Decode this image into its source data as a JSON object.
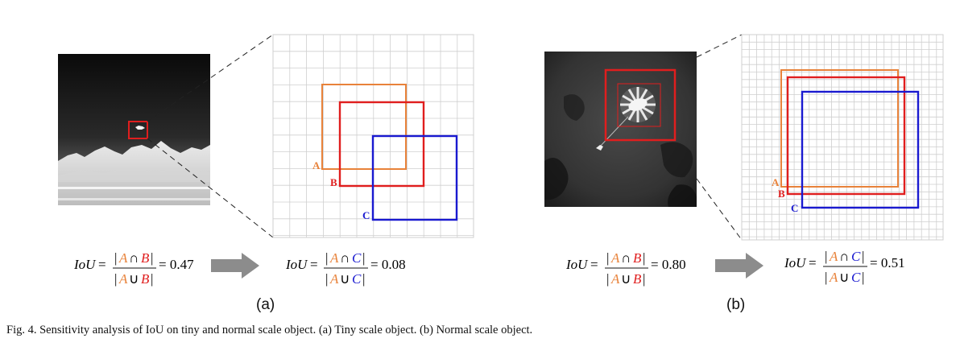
{
  "colors": {
    "A": "#e8823a",
    "B": "#e01e1e",
    "C": "#1a1ad0",
    "grid": "#cfcfcf",
    "arrow": "#8c8c8c"
  },
  "panels": [
    {
      "id": "a",
      "label": "(a)",
      "box_labels": {
        "A": "A",
        "B": "B",
        "C": "C"
      },
      "formula1": {
        "lhs": "IoU",
        "A": "A",
        "B": "B",
        "cap": "∩",
        "cup": "∪",
        "value": "= 0.47"
      },
      "formula2": {
        "lhs": "IoU",
        "A": "A",
        "B": "C",
        "cap": "∩",
        "cup": "∪",
        "value": "= 0.08"
      }
    },
    {
      "id": "b",
      "label": "(b)",
      "box_labels": {
        "A": "A",
        "B": "B",
        "C": "C"
      },
      "formula1": {
        "lhs": "IoU",
        "A": "A",
        "B": "B",
        "cap": "∩",
        "cup": "∪",
        "value": "= 0.80"
      },
      "formula2": {
        "lhs": "IoU",
        "A": "A",
        "B": "C",
        "cap": "∩",
        "cup": "∪",
        "value": "= 0.51"
      }
    }
  ],
  "caption": "Fig. 4.  Sensitivity analysis of IoU on tiny and normal scale object. (a) Tiny scale object. (b) Normal scale object."
}
